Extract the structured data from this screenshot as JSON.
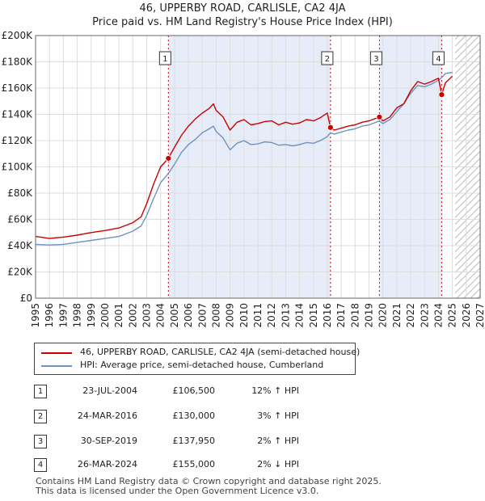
{
  "colors": {
    "price_line": "#cc0000",
    "hpi_line": "#6f93c0",
    "shade": "#e6ecf8",
    "grid": "#dddddd",
    "marker": "#cc0000"
  },
  "chart_data": {
    "type": "line",
    "title": "46, UPPERBY ROAD, CARLISLE, CA2 4JA",
    "subtitle": "Price paid vs. HM Land Registry's House Price Index (HPI)",
    "xlabel": "",
    "ylabel": "",
    "xlim": [
      1995,
      2027
    ],
    "ylim": [
      0,
      200000
    ],
    "y_ticks": [
      {
        "value": 0,
        "label": "£0"
      },
      {
        "value": 20000,
        "label": "£20K"
      },
      {
        "value": 40000,
        "label": "£40K"
      },
      {
        "value": 60000,
        "label": "£60K"
      },
      {
        "value": 80000,
        "label": "£80K"
      },
      {
        "value": 100000,
        "label": "£100K"
      },
      {
        "value": 120000,
        "label": "£120K"
      },
      {
        "value": 140000,
        "label": "£140K"
      },
      {
        "value": 160000,
        "label": "£160K"
      },
      {
        "value": 180000,
        "label": "£180K"
      },
      {
        "value": 200000,
        "label": "£200K"
      }
    ],
    "x_ticks": [
      "1995",
      "1996",
      "1997",
      "1998",
      "1999",
      "2000",
      "2001",
      "2002",
      "2003",
      "2004",
      "2005",
      "2006",
      "2007",
      "2008",
      "2009",
      "2010",
      "2011",
      "2012",
      "2013",
      "2014",
      "2015",
      "2016",
      "2017",
      "2018",
      "2019",
      "2020",
      "2021",
      "2022",
      "2023",
      "2024",
      "2025",
      "2026",
      "2027"
    ],
    "shaded_ranges": [
      [
        2004.56,
        2016.23
      ],
      [
        2019.75,
        2024.23
      ]
    ],
    "future_hatch_from": 2025.2,
    "sales": [
      {
        "label": "1",
        "x": 2004.56,
        "value": 106500
      },
      {
        "label": "2",
        "x": 2016.23,
        "value": 130000
      },
      {
        "label": "3",
        "x": 2019.75,
        "value": 137950
      },
      {
        "label": "4",
        "x": 2024.23,
        "value": 155000
      }
    ],
    "series": [
      {
        "name": "46, UPPERBY ROAD, CARLISLE, CA2 4JA (semi-detached house)",
        "x": [
          1995,
          1996,
          1997,
          1998,
          1999,
          2000,
          2001,
          2002,
          2002.6,
          2003,
          2003.5,
          2004,
          2004.56,
          2005,
          2005.5,
          2006,
          2006.5,
          2007,
          2007.5,
          2007.8,
          2008,
          2008.5,
          2009,
          2009.5,
          2010,
          2010.5,
          2011,
          2011.5,
          2012,
          2012.5,
          2013,
          2013.5,
          2014,
          2014.5,
          2015,
          2015.5,
          2016,
          2016.23,
          2016.5,
          2017,
          2017.5,
          2018,
          2018.5,
          2019,
          2019.5,
          2019.75,
          2020,
          2020.5,
          2021,
          2021.5,
          2022,
          2022.5,
          2023,
          2023.5,
          2024,
          2024.23,
          2024.5,
          2025
        ],
        "values": [
          47000,
          45500,
          46500,
          48000,
          50000,
          51500,
          53500,
          57500,
          62000,
          72000,
          87000,
          100000,
          106500,
          115000,
          124000,
          131000,
          136500,
          141000,
          144500,
          148000,
          143000,
          138000,
          128000,
          134000,
          136000,
          132000,
          133000,
          134500,
          135000,
          132000,
          134000,
          132500,
          133500,
          136000,
          135000,
          137500,
          141000,
          130000,
          128000,
          129500,
          131000,
          132000,
          134000,
          135000,
          137000,
          137950,
          135000,
          138000,
          145000,
          148000,
          158000,
          165000,
          163000,
          165000,
          167500,
          155000,
          164000,
          169000
        ]
      },
      {
        "name": "HPI: Average price, semi-detached house, Cumberland",
        "x": [
          1995,
          1996,
          1997,
          1998,
          1999,
          2000,
          2001,
          2002,
          2002.6,
          2003,
          2003.5,
          2004,
          2004.56,
          2005,
          2005.5,
          2006,
          2006.5,
          2007,
          2007.5,
          2007.8,
          2008,
          2008.5,
          2009,
          2009.5,
          2010,
          2010.5,
          2011,
          2011.5,
          2012,
          2012.5,
          2013,
          2013.5,
          2014,
          2014.5,
          2015,
          2015.5,
          2016,
          2016.23,
          2016.5,
          2017,
          2017.5,
          2018,
          2018.5,
          2019,
          2019.5,
          2019.75,
          2020,
          2020.5,
          2021,
          2021.5,
          2022,
          2022.5,
          2023,
          2023.5,
          2024,
          2024.23,
          2024.5,
          2025
        ],
        "values": [
          41000,
          40500,
          41000,
          42500,
          44000,
          45500,
          47000,
          51000,
          55000,
          63000,
          76000,
          88000,
          95000,
          102000,
          111000,
          117000,
          121000,
          126000,
          129000,
          131000,
          127000,
          122000,
          113000,
          118000,
          120000,
          117000,
          117500,
          119000,
          118500,
          116500,
          117000,
          116000,
          117000,
          118500,
          118000,
          120000,
          123000,
          126000,
          125000,
          126500,
          128000,
          129000,
          131000,
          132000,
          134000,
          135000,
          133000,
          136000,
          142000,
          148000,
          156000,
          162000,
          161000,
          163000,
          166000,
          168000,
          171000,
          172000
        ]
      }
    ],
    "legend_position": "below"
  },
  "legend": [
    {
      "label": "46, UPPERBY ROAD, CARLISLE, CA2 4JA (semi-detached house)"
    },
    {
      "label": "HPI: Average price, semi-detached house, Cumberland"
    }
  ],
  "transactions": [
    {
      "num": "1",
      "date": "23-JUL-2004",
      "price": "£106,500",
      "hpi": "12% ↑ HPI"
    },
    {
      "num": "2",
      "date": "24-MAR-2016",
      "price": "£130,000",
      "hpi": "3% ↑ HPI"
    },
    {
      "num": "3",
      "date": "30-SEP-2019",
      "price": "£137,950",
      "hpi": "2% ↑ HPI"
    },
    {
      "num": "4",
      "date": "26-MAR-2024",
      "price": "£155,000",
      "hpi": "2% ↓ HPI"
    }
  ],
  "footer": {
    "line1": "Contains HM Land Registry data © Crown copyright and database right 2025.",
    "line2": "This data is licensed under the Open Government Licence v3.0."
  }
}
